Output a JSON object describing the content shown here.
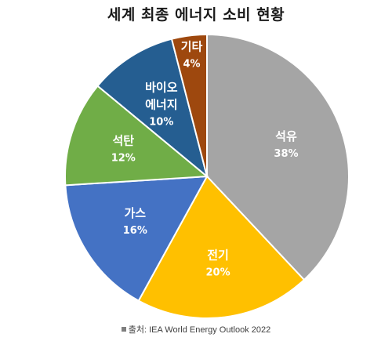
{
  "chart_data": {
    "type": "pie",
    "title": "세계 최종 에너지 소비 현황",
    "slices": [
      {
        "label": "석유",
        "value": 38,
        "pct": "38%",
        "color": "#a5a5a5"
      },
      {
        "label": "전기",
        "value": 20,
        "pct": "20%",
        "color": "#ffc000"
      },
      {
        "label": "가스",
        "value": 16,
        "pct": "16%",
        "color": "#4472c4"
      },
      {
        "label": "석탄",
        "value": 12,
        "pct": "12%",
        "color": "#70ad47"
      },
      {
        "label": "바이오 에너지",
        "lines": [
          "바이오",
          "에너지"
        ],
        "value": 10,
        "pct": "10%",
        "color": "#255e91"
      },
      {
        "label": "기타",
        "value": 4,
        "pct": "4%",
        "color": "#9e480e"
      }
    ],
    "source": "출처: IEA World Energy Outlook 2022"
  }
}
